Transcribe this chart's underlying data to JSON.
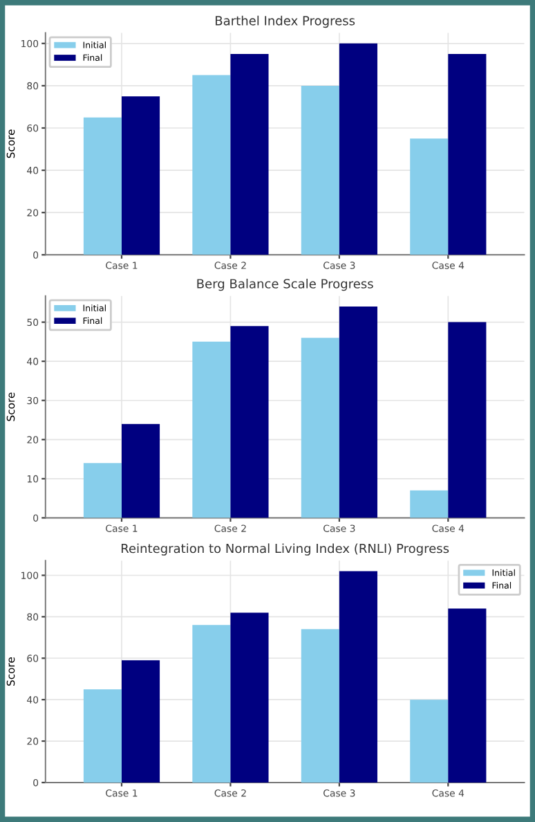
{
  "chart_data": [
    {
      "type": "bar",
      "title": "Barthel Index Progress",
      "ylabel": "Score",
      "categories": [
        "Case 1",
        "Case 2",
        "Case 3",
        "Case 4"
      ],
      "series": [
        {
          "name": "Initial",
          "color": "#87ceeb",
          "values": [
            65,
            85,
            80,
            55
          ]
        },
        {
          "name": "Final",
          "color": "#000080",
          "values": [
            75,
            95,
            100,
            95
          ]
        }
      ],
      "ylim": [
        0,
        105
      ],
      "yticks": [
        0,
        20,
        40,
        60,
        80,
        100
      ],
      "grid": true,
      "legend": "top left"
    },
    {
      "type": "bar",
      "title": "Berg Balance Scale Progress",
      "ylabel": "Score",
      "categories": [
        "Case 1",
        "Case 2",
        "Case 3",
        "Case 4"
      ],
      "series": [
        {
          "name": "Initial",
          "color": "#87ceeb",
          "values": [
            14,
            45,
            46,
            7
          ]
        },
        {
          "name": "Final",
          "color": "#000080",
          "values": [
            24,
            49,
            54,
            50
          ]
        }
      ],
      "ylim": [
        0,
        56.7
      ],
      "yticks": [
        0,
        10,
        20,
        30,
        40,
        50
      ],
      "grid": true,
      "legend": "top left"
    },
    {
      "type": "bar",
      "title": "Reintegration to Normal Living Index (RNLI) Progress",
      "ylabel": "Score",
      "categories": [
        "Case 1",
        "Case 2",
        "Case 3",
        "Case 4"
      ],
      "series": [
        {
          "name": "Initial",
          "color": "#87ceeb",
          "values": [
            45,
            76,
            74,
            40
          ]
        },
        {
          "name": "Final",
          "color": "#000080",
          "values": [
            59,
            82,
            102,
            84
          ]
        }
      ],
      "ylim": [
        0,
        107.1
      ],
      "yticks": [
        0,
        20,
        40,
        60,
        80,
        100
      ],
      "grid": true,
      "legend": "top right"
    }
  ]
}
